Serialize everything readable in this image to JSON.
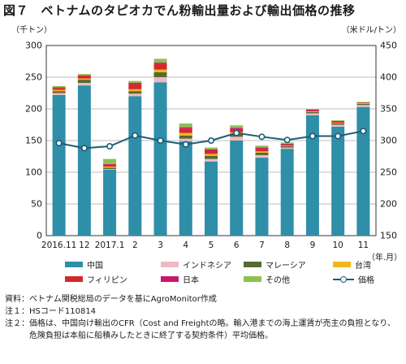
{
  "title": "図７　ベトナムのタピオカでん粉輸出量および輸出価格の推移",
  "legend": {
    "items": [
      {
        "label": "中国",
        "color": "#2f8ea8",
        "kind": "bar"
      },
      {
        "label": "インドネシア",
        "color": "#f0b8c4",
        "kind": "bar"
      },
      {
        "label": "マレーシア",
        "color": "#556b2f",
        "kind": "bar"
      },
      {
        "label": "台湾",
        "color": "#f2b61c",
        "kind": "bar"
      },
      {
        "label": "フィリピン",
        "color": "#d6282b",
        "kind": "bar"
      },
      {
        "label": "日本",
        "color": "#c8186e",
        "kind": "bar"
      },
      {
        "label": "その他",
        "color": "#8cc152",
        "kind": "bar"
      },
      {
        "label": "価格",
        "color": "#1f5b74",
        "kind": "line"
      }
    ]
  },
  "notes": [
    {
      "label": "資料：",
      "text": "ベトナム関税総局のデータを基にAgroMonitor作成"
    },
    {
      "label": "注１：",
      "text": "HSコード110814"
    },
    {
      "label": "注２：",
      "text": "価格は、中国向け輸出のCFR（Cost and Freightの略。輸入港までの海上運賃が売主の負担となり、危険負担は本船に船積みしたときに終了する契約条件）平均価格。"
    }
  ],
  "chart_data": {
    "type": "bar",
    "stacked": true,
    "y_unit_left": "（千トン）",
    "y_unit_right": "（米ドル/トン）",
    "x_unit": "（年.月）",
    "categories": [
      "2016.11",
      "12",
      "2017.1",
      "2",
      "3",
      "4",
      "5",
      "6",
      "7",
      "8",
      "9",
      "10",
      "11"
    ],
    "ylim": [
      0,
      300
    ],
    "yticks": [
      0,
      50,
      100,
      150,
      200,
      250,
      300
    ],
    "y2lim": [
      150,
      450
    ],
    "y2ticks": [
      150,
      200,
      250,
      300,
      350,
      400,
      450
    ],
    "grid": true,
    "series": [
      {
        "name": "中国",
        "color": "#2f8ea8",
        "values": [
          222,
          237,
          104,
          220,
          242,
          149,
          117,
          150,
          123,
          137,
          190,
          172,
          203
        ]
      },
      {
        "name": "インドネシア",
        "color": "#f0b8c4",
        "values": [
          3,
          4,
          1,
          4,
          8,
          4,
          4,
          6,
          4,
          2,
          3,
          3,
          3
        ]
      },
      {
        "name": "マレーシア",
        "color": "#556b2f",
        "values": [
          3,
          5,
          2,
          4,
          8,
          5,
          5,
          4,
          4,
          2,
          2,
          2,
          2
        ]
      },
      {
        "name": "台湾",
        "color": "#f2b61c",
        "values": [
          2,
          2,
          2,
          3,
          4,
          4,
          3,
          3,
          2,
          1,
          1,
          1,
          1
        ]
      },
      {
        "name": "フィリピン",
        "color": "#d6282b",
        "values": [
          3,
          4,
          3,
          8,
          9,
          7,
          5,
          5,
          4,
          2,
          2,
          2,
          1
        ]
      },
      {
        "name": "日本",
        "color": "#c8186e",
        "values": [
          1,
          1,
          1,
          2,
          2,
          2,
          2,
          2,
          2,
          1,
          1,
          1,
          0
        ]
      },
      {
        "name": "その他",
        "color": "#8cc152",
        "values": [
          2,
          2,
          8,
          3,
          6,
          6,
          3,
          4,
          3,
          2,
          1,
          1,
          1
        ]
      }
    ],
    "line": {
      "name": "価格",
      "color": "#1f5b74",
      "axis": "right",
      "values": [
        296,
        288,
        291,
        308,
        300,
        294,
        300,
        312,
        306,
        301,
        307,
        307,
        315
      ]
    }
  }
}
